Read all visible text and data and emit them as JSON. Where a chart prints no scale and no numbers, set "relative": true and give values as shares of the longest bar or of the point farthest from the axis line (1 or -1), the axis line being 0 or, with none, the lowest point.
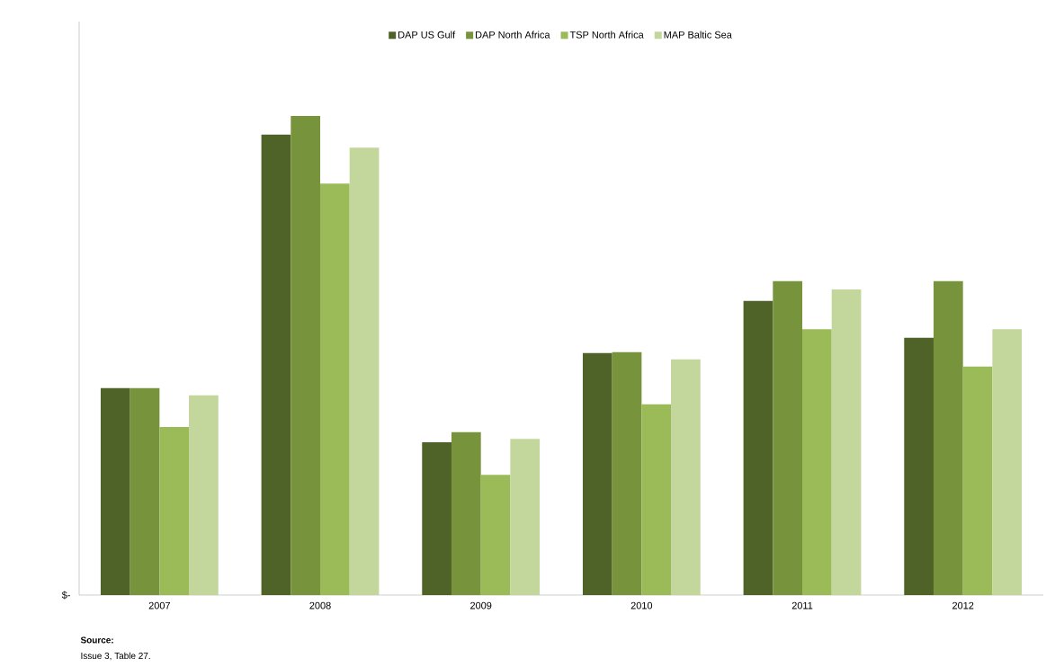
{
  "chart_data": {
    "type": "bar",
    "relative": true,
    "categories": [
      "2007",
      "2008",
      "2009",
      "2010",
      "2011",
      "2012"
    ],
    "series": [
      {
        "name": "DAP US Gulf",
        "color": "#4f6228",
        "values": [
          0.432,
          0.961,
          0.319,
          0.505,
          0.614,
          0.537
        ]
      },
      {
        "name": "DAP North Africa",
        "color": "#77933c",
        "values": [
          0.432,
          1,
          0.34,
          0.507,
          0.655,
          0.655
        ]
      },
      {
        "name": "TSP North Africa",
        "color": "#9bbb59",
        "values": [
          0.351,
          0.859,
          0.251,
          0.398,
          0.555,
          0.477
        ]
      },
      {
        "name": "MAP Baltic Sea",
        "color": "#c3d69b",
        "values": [
          0.417,
          0.934,
          0.326,
          0.492,
          0.638,
          0.555
        ]
      }
    ],
    "legend": "top",
    "annotations": [
      "$-",
      "**Source:**",
      "Issue 3, Table 27."
    ]
  }
}
